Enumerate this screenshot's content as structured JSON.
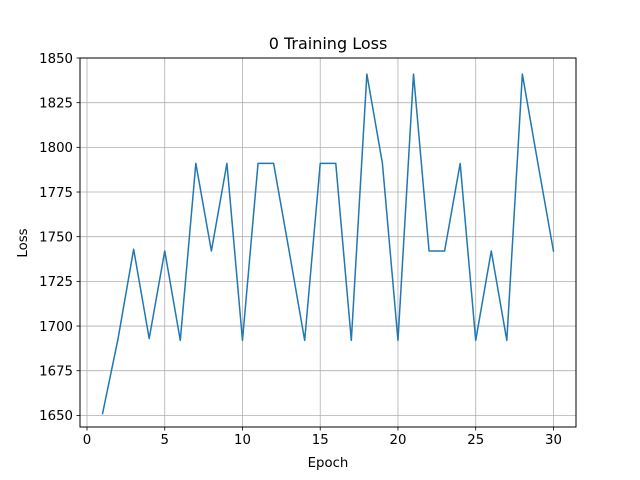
{
  "chart_data": {
    "type": "line",
    "title": "0 Training Loss",
    "xlabel": "Epoch",
    "ylabel": "Loss",
    "xlim": [
      -0.45,
      31.45
    ],
    "ylim": [
      1643.5,
      1850
    ],
    "xticks": [
      0,
      5,
      10,
      15,
      20,
      25,
      30
    ],
    "yticks": [
      1650,
      1675,
      1700,
      1725,
      1750,
      1775,
      1800,
      1825,
      1850
    ],
    "grid": true,
    "colors": {
      "line": "#1f77b4",
      "grid": "#b0b0b0",
      "axes": "#000000"
    },
    "series": [
      {
        "x": [
          1,
          2,
          3,
          4,
          5,
          6,
          7,
          8,
          9,
          10,
          11,
          12,
          13,
          14,
          15,
          16,
          17,
          18,
          19,
          20,
          21,
          22,
          23,
          24,
          25,
          26,
          27,
          28,
          29,
          30
        ],
        "values": [
          1651,
          1693,
          1743,
          1693,
          1742,
          1692,
          1791,
          1742,
          1791,
          1692,
          1791,
          1791,
          1742,
          1692,
          1791,
          1791,
          1692,
          1841,
          1791,
          1692,
          1841,
          1742,
          1742,
          1791,
          1692,
          1742,
          1692,
          1841,
          1791,
          1742
        ]
      }
    ]
  }
}
